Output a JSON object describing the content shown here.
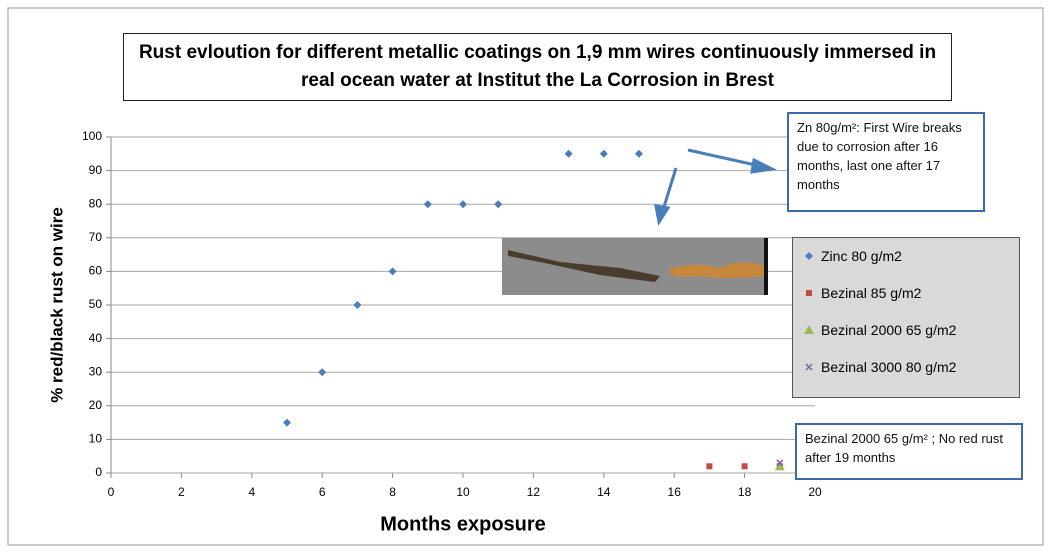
{
  "chart_data": {
    "type": "scatter",
    "title": "Rust evloution for different metallic coatings on 1,9 mm wires continuously immersed in real ocean water at Institut the La Corrosion in Brest",
    "xlabel": "Months exposure",
    "ylabel": "% red/black rust on wire",
    "xlim": [
      0,
      20
    ],
    "ylim": [
      0,
      100
    ],
    "xticks": [
      0,
      2,
      4,
      6,
      8,
      10,
      12,
      14,
      16,
      18,
      20
    ],
    "yticks": [
      0,
      10,
      20,
      30,
      40,
      50,
      60,
      70,
      80,
      90,
      100
    ],
    "grid": true,
    "legend": "right",
    "series": [
      {
        "name": "Zinc 80 g/m2",
        "color": "#4a7ebb",
        "marker": "diamond",
        "x": [
          5,
          6,
          7,
          8,
          9,
          10,
          11,
          13,
          14,
          15
        ],
        "values": [
          15,
          30,
          50,
          60,
          80,
          80,
          80,
          95,
          95,
          95
        ]
      },
      {
        "name": "Bezinal 85 g/m2",
        "color": "#be4b48",
        "marker": "square",
        "x": [
          17,
          18,
          19
        ],
        "values": [
          2,
          2,
          2
        ]
      },
      {
        "name": "Bezinal 2000 65 g/m2",
        "color": "#98b954",
        "marker": "triangle",
        "x": [
          19
        ],
        "values": [
          2
        ]
      },
      {
        "name": "Bezinal 3000 80 g/m2",
        "color": "#7d60a0",
        "marker": "x",
        "x": [
          19
        ],
        "values": [
          3
        ]
      }
    ],
    "annotations": [
      {
        "text": "Zn 80g/m²: First Wire breaks due to corrosion after 16 months, last one after 17 months"
      },
      {
        "text": "Bezinal 2000 65 g/m² ; No red rust after 19 months"
      }
    ]
  }
}
